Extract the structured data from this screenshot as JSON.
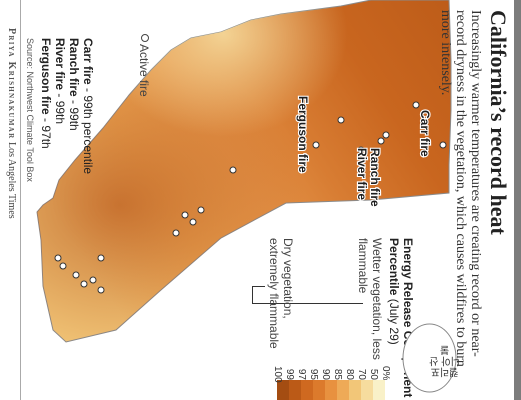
{
  "title": "California’s record heat",
  "subtitle": "Increasingly warmer temperatures are creating record or near-record dryness in the vegetation, which causes wildfires to burn more intensely.",
  "legend": {
    "title_bold": "Energy Release Component",
    "title_bold2": "Percentile",
    "date": "(July 29)",
    "wet_label": "Wetter vegetation, less flammable",
    "dry_label": "Dry vegetation, extremely flammable",
    "colors": [
      "#f9f1c8",
      "#f6dc9e",
      "#f2c678",
      "#eeaa57",
      "#e8913f",
      "#dc7a2c",
      "#cf6920",
      "#bb5a17",
      "#a44d12"
    ],
    "ticks": [
      "0%",
      "50",
      "70",
      "80",
      "85",
      "90",
      "95",
      "97",
      "99",
      "100"
    ]
  },
  "fires": {
    "carr": "Carr fire",
    "ranch": "Ranch fire",
    "river": "River fire",
    "ferguson": "Ferguson fire"
  },
  "active_fire_legend": "Active fire",
  "percentiles": [
    {
      "name": "Carr fire",
      "value": " - 99th percentile"
    },
    {
      "name": "Ranch fire",
      "value": " - 99th"
    },
    {
      "name": "River fire",
      "value": " - 99th"
    },
    {
      "name": "Ferguson fire",
      "value": " - 97th"
    }
  ],
  "source": "Source: Northwest Climate Tool Box",
  "credit_name": "Priya Krishnakumar",
  "credit_org": "Los Angeles Times",
  "overlay_note": "캘리포니아 산불"
}
